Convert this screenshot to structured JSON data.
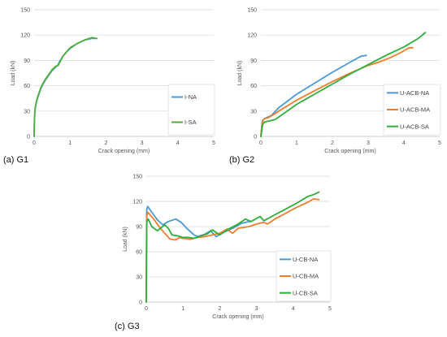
{
  "chart_data": [
    {
      "type": "line",
      "caption": "(a) G1",
      "xlabel": "Crack opening (mm)",
      "ylabel": "Load (kN)",
      "xlim": [
        0,
        5
      ],
      "ylim": [
        0,
        150
      ],
      "xticks": [
        0,
        1,
        2,
        3,
        4,
        5
      ],
      "yticks": [
        0,
        30,
        60,
        90,
        120,
        150
      ],
      "legend": "bottom-right",
      "series": [
        {
          "name": "I-NA",
          "color": "#4a9ad4",
          "points": [
            [
              0,
              0
            ],
            [
              0.01,
              20
            ],
            [
              0.03,
              33
            ],
            [
              0.06,
              40
            ],
            [
              0.1,
              46
            ],
            [
              0.15,
              52
            ],
            [
              0.2,
              58
            ],
            [
              0.3,
              66
            ],
            [
              0.4,
              72
            ],
            [
              0.5,
              78
            ],
            [
              0.6,
              82
            ],
            [
              0.67,
              85
            ],
            [
              0.7,
              88
            ],
            [
              0.8,
              95
            ],
            [
              0.9,
              100
            ],
            [
              1.0,
              104
            ],
            [
              1.2,
              110
            ],
            [
              1.4,
              114
            ],
            [
              1.6,
              116
            ],
            [
              1.73,
              116
            ]
          ]
        },
        {
          "name": "I-SA",
          "color": "#4fae3c",
          "points": [
            [
              0,
              0
            ],
            [
              0.01,
              22
            ],
            [
              0.03,
              34
            ],
            [
              0.06,
              41
            ],
            [
              0.1,
              47
            ],
            [
              0.15,
              53
            ],
            [
              0.2,
              59
            ],
            [
              0.3,
              67
            ],
            [
              0.4,
              73
            ],
            [
              0.5,
              79
            ],
            [
              0.6,
              83
            ],
            [
              0.67,
              84
            ],
            [
              0.72,
              88
            ],
            [
              0.8,
              95
            ],
            [
              0.9,
              100
            ],
            [
              1.0,
              105
            ],
            [
              1.2,
              110
            ],
            [
              1.4,
              114
            ],
            [
              1.6,
              117
            ],
            [
              1.75,
              116
            ]
          ]
        }
      ]
    },
    {
      "type": "line",
      "caption": "(b) G2",
      "xlabel": "Crack opening (mm)",
      "ylabel": "Load (kN)",
      "xlim": [
        0,
        5
      ],
      "ylim": [
        0,
        150
      ],
      "xticks": [
        0,
        1,
        2,
        3,
        4,
        5
      ],
      "yticks": [
        0,
        30,
        60,
        90,
        120,
        150
      ],
      "legend": "bottom-right",
      "series": [
        {
          "name": "U-ACB-NA",
          "color": "#4a9ad4",
          "points": [
            [
              0,
              0
            ],
            [
              0.03,
              14
            ],
            [
              0.05,
              19
            ],
            [
              0.1,
              21
            ],
            [
              0.2,
              23
            ],
            [
              0.3,
              25
            ],
            [
              0.5,
              34
            ],
            [
              1.0,
              50
            ],
            [
              1.5,
              63
            ],
            [
              2.0,
              76
            ],
            [
              2.5,
              88
            ],
            [
              2.8,
              95
            ],
            [
              2.95,
              96
            ]
          ]
        },
        {
          "name": "U-ACB-MA",
          "color": "#ee7e2d",
          "points": [
            [
              0,
              0
            ],
            [
              0.03,
              15
            ],
            [
              0.06,
              19
            ],
            [
              0.1,
              21
            ],
            [
              0.2,
              22
            ],
            [
              0.4,
              27
            ],
            [
              0.5,
              30
            ],
            [
              1.0,
              43
            ],
            [
              1.5,
              54
            ],
            [
              2.0,
              65
            ],
            [
              2.5,
              75
            ],
            [
              3.0,
              84
            ],
            [
              3.3,
              88
            ],
            [
              3.6,
              93
            ],
            [
              3.9,
              99
            ],
            [
              4.15,
              105
            ],
            [
              4.25,
              105
            ]
          ]
        },
        {
          "name": "U-ACB-SA",
          "color": "#2fae3c",
          "points": [
            [
              0,
              0
            ],
            [
              0.05,
              14
            ],
            [
              0.1,
              17
            ],
            [
              0.2,
              18
            ],
            [
              0.4,
              20
            ],
            [
              0.5,
              23
            ],
            [
              1.0,
              38
            ],
            [
              1.5,
              50
            ],
            [
              2.0,
              62
            ],
            [
              2.5,
              74
            ],
            [
              3.0,
              85
            ],
            [
              3.5,
              96
            ],
            [
              4.0,
              106
            ],
            [
              4.4,
              116
            ],
            [
              4.6,
              123
            ]
          ]
        }
      ]
    },
    {
      "type": "line",
      "caption": "(c) G3",
      "xlabel": "Crack opening (mm)",
      "ylabel": "Load (kN)",
      "xlim": [
        0,
        5
      ],
      "ylim": [
        0,
        150
      ],
      "xticks": [
        0,
        1,
        2,
        3,
        4,
        5
      ],
      "yticks": [
        0,
        30,
        60,
        90,
        120,
        150
      ],
      "legend": "bottom-right",
      "series": [
        {
          "name": "U-CB-NA",
          "color": "#4a9ad4",
          "points": [
            [
              0,
              0
            ],
            [
              0.01,
              110
            ],
            [
              0.04,
              114
            ],
            [
              0.15,
              107
            ],
            [
              0.3,
              98
            ],
            [
              0.45,
              92
            ],
            [
              0.6,
              96
            ],
            [
              0.8,
              99
            ],
            [
              0.95,
              95
            ],
            [
              1.1,
              88
            ],
            [
              1.3,
              80
            ],
            [
              1.4,
              78
            ],
            [
              1.6,
              81
            ],
            [
              1.75,
              85
            ],
            [
              1.9,
              78
            ],
            [
              2.1,
              83
            ],
            [
              2.4,
              89
            ],
            [
              2.6,
              94
            ],
            [
              2.8,
              96
            ],
            [
              2.85,
              96
            ]
          ]
        },
        {
          "name": "U-CB-MA",
          "color": "#ee7e2d",
          "points": [
            [
              0,
              0
            ],
            [
              0.01,
              102
            ],
            [
              0.04,
              107
            ],
            [
              0.2,
              99
            ],
            [
              0.35,
              90
            ],
            [
              0.5,
              82
            ],
            [
              0.65,
              75
            ],
            [
              0.8,
              74
            ],
            [
              0.9,
              77
            ],
            [
              1.0,
              76
            ],
            [
              1.2,
              75
            ],
            [
              1.4,
              77
            ],
            [
              1.6,
              78
            ],
            [
              1.8,
              80
            ],
            [
              2.0,
              82
            ],
            [
              2.2,
              87
            ],
            [
              2.35,
              82
            ],
            [
              2.5,
              88
            ],
            [
              2.8,
              90
            ],
            [
              3.0,
              93
            ],
            [
              3.2,
              95
            ],
            [
              3.3,
              93
            ],
            [
              3.5,
              99
            ],
            [
              3.8,
              106
            ],
            [
              4.1,
              113
            ],
            [
              4.4,
              119
            ],
            [
              4.55,
              123
            ],
            [
              4.7,
              122
            ]
          ]
        },
        {
          "name": "U-CB-SA",
          "color": "#2fae3c",
          "points": [
            [
              0,
              0
            ],
            [
              0.01,
              95
            ],
            [
              0.05,
              99
            ],
            [
              0.15,
              90
            ],
            [
              0.3,
              85
            ],
            [
              0.5,
              92
            ],
            [
              0.6,
              88
            ],
            [
              0.7,
              80
            ],
            [
              0.85,
              79
            ],
            [
              1.0,
              77
            ],
            [
              1.15,
              77
            ],
            [
              1.3,
              76
            ],
            [
              1.5,
              79
            ],
            [
              1.65,
              81
            ],
            [
              1.8,
              86
            ],
            [
              2.0,
              80
            ],
            [
              2.2,
              86
            ],
            [
              2.5,
              93
            ],
            [
              2.7,
              99
            ],
            [
              2.85,
              96
            ],
            [
              3.1,
              102
            ],
            [
              3.2,
              97
            ],
            [
              3.5,
              104
            ],
            [
              3.8,
              111
            ],
            [
              4.1,
              118
            ],
            [
              4.4,
              126
            ],
            [
              4.55,
              128
            ],
            [
              4.7,
              131
            ]
          ]
        }
      ]
    }
  ]
}
